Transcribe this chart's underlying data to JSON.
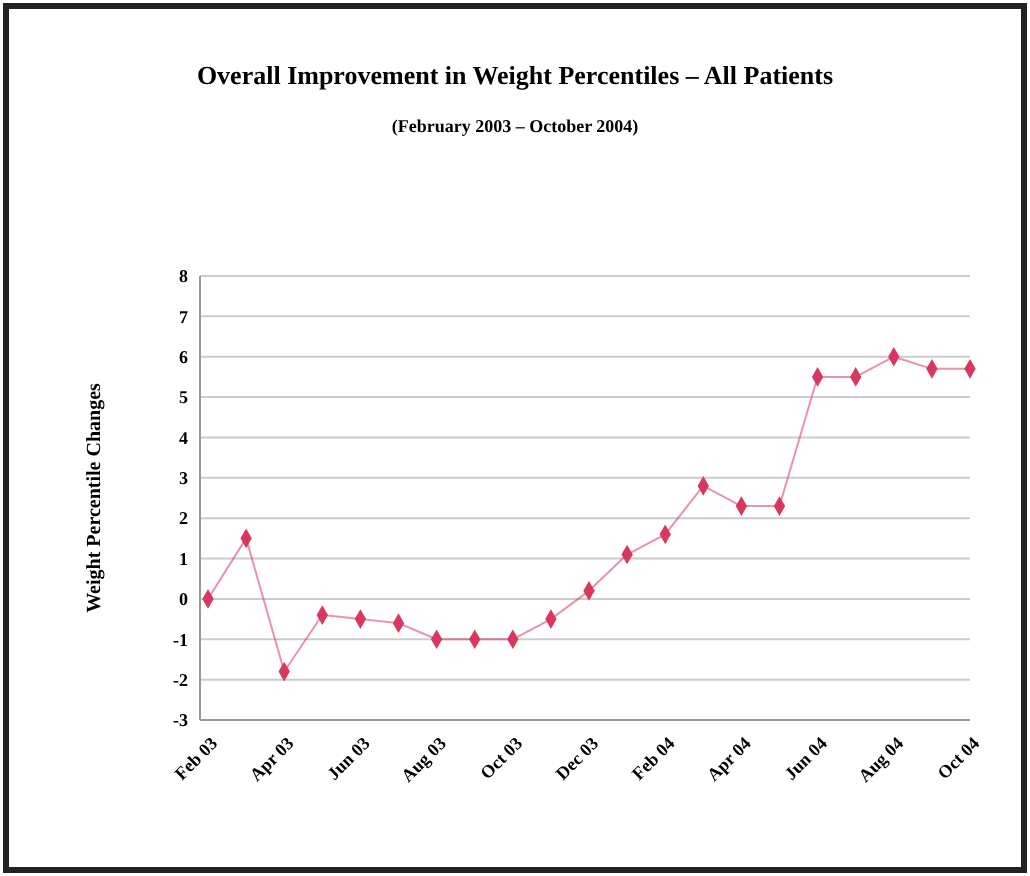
{
  "chart_data": {
    "type": "line",
    "title": "Overall Improvement in Weight Percentiles – All Patients",
    "subtitle": "(February 2003 – October 2004)",
    "ylabel": "Weight Percentile Changes",
    "categories": [
      "Feb 03",
      null,
      "Apr 03",
      null,
      "Jun 03",
      null,
      "Aug 03",
      null,
      "Oct 03",
      null,
      "Dec 03",
      null,
      "Feb 04",
      null,
      "Apr 04",
      null,
      "Jun 04",
      null,
      "Aug 04",
      null,
      "Oct 04"
    ],
    "series": [
      {
        "color": "#d8385f",
        "values": [
          0,
          1.5,
          -1.8,
          -0.4,
          -0.5,
          -0.6,
          -1,
          -1,
          -1,
          -0.5,
          0.2,
          1.1,
          1.6,
          2.8,
          2.3,
          2.3,
          5.5,
          5.5,
          6,
          5.7,
          5.7
        ]
      }
    ],
    "ylim": [
      -3,
      8
    ],
    "yticks": [
      -3,
      -2,
      -1,
      0,
      1,
      2,
      3,
      4,
      5,
      6,
      7,
      8
    ],
    "grid": "y",
    "marker": "diamond",
    "line_style": "solid"
  }
}
